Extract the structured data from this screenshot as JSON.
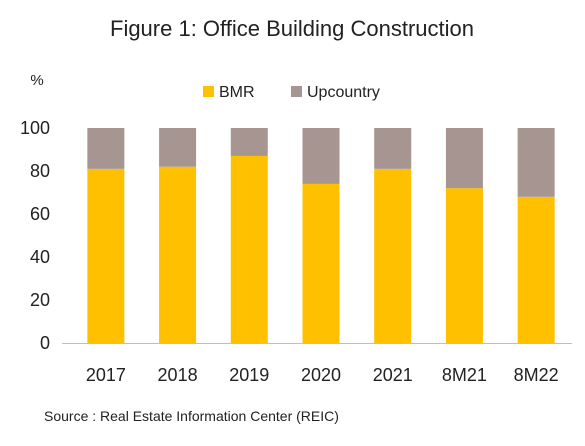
{
  "chart_data": {
    "type": "bar",
    "stacked": true,
    "title": "Figure 1: Office Building Construction",
    "ylabel": "%",
    "xlabel": "",
    "categories": [
      "2017",
      "2018",
      "2019",
      "2020",
      "2021",
      "8M21",
      "8M22"
    ],
    "series": [
      {
        "name": "BMR",
        "values": [
          81,
          82,
          87,
          74,
          81,
          72,
          68
        ],
        "color": "#FFC000"
      },
      {
        "name": "Upcountry",
        "values": [
          19,
          18,
          13,
          26,
          19,
          28,
          32
        ],
        "color": "#A79591"
      }
    ],
    "ylim": [
      0,
      100
    ],
    "yticks": [
      0,
      20,
      40,
      60,
      80,
      100
    ],
    "legend_position": "top",
    "grid": false
  },
  "source": "Source : Real Estate Information Center (REIC)"
}
